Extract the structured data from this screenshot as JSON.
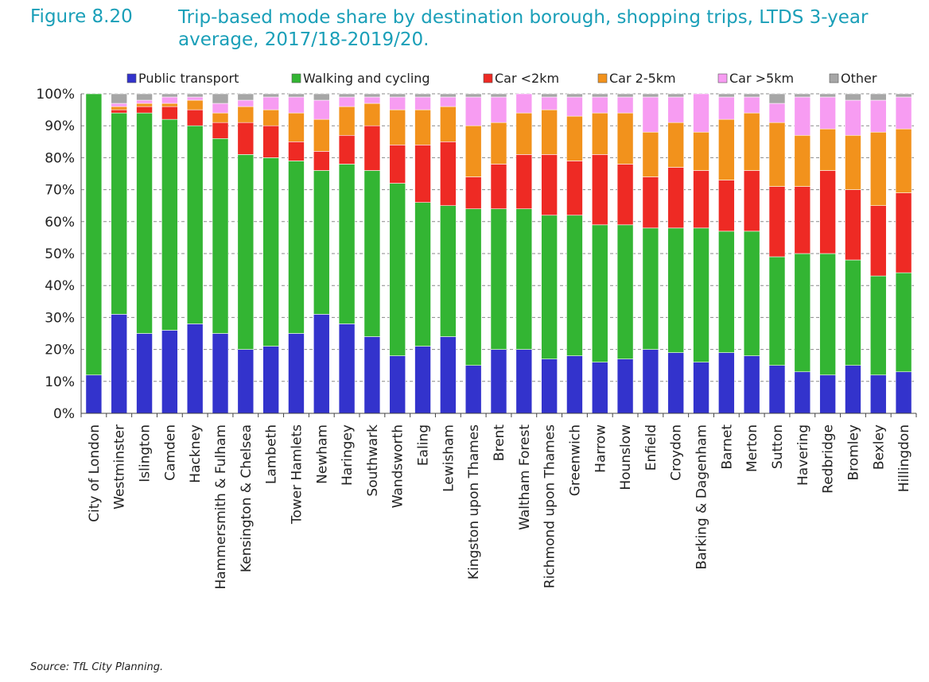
{
  "figure": {
    "number": "Figure 8.20",
    "title": "Trip-based mode share by destination borough, shopping trips, LTDS 3-year average, 2017/18-2019/20.",
    "source": "Source: TfL City Planning."
  },
  "chart_data": {
    "type": "bar",
    "stacked": true,
    "title": "",
    "xlabel": "",
    "ylabel": "",
    "ylim": [
      0,
      100
    ],
    "y_ticks": [
      "0%",
      "10%",
      "20%",
      "30%",
      "40%",
      "50%",
      "60%",
      "70%",
      "80%",
      "90%",
      "100%"
    ],
    "grid": "horizontal dashed",
    "legend_position": "top",
    "categories": [
      "City of London",
      "Westminster",
      "Islington",
      "Camden",
      "Hackney",
      "Hammersmith & Fulham",
      "Kensington & Chelsea",
      "Lambeth",
      "Tower Hamlets",
      "Newham",
      "Haringey",
      "Southwark",
      "Wandsworth",
      "Ealing",
      "Lewisham",
      "Kingston upon Thames",
      "Brent",
      "Waltham Forest",
      "Richmond upon Thames",
      "Greenwich",
      "Harrow",
      "Hounslow",
      "Enfield",
      "Croydon",
      "Barking & Dagenham",
      "Barnet",
      "Merton",
      "Sutton",
      "Havering",
      "Redbridge",
      "Bromley",
      "Bexley",
      "Hillingdon"
    ],
    "series": [
      {
        "name": "Public transport",
        "color": "#3333cc",
        "values": [
          12,
          31,
          25,
          26,
          28,
          25,
          20,
          21,
          25,
          31,
          28,
          24,
          18,
          21,
          24,
          15,
          20,
          20,
          17,
          18,
          16,
          17,
          20,
          19,
          16,
          19,
          18,
          15,
          13,
          12,
          15,
          12,
          13
        ]
      },
      {
        "name": "Walking and cycling",
        "color": "#33b533",
        "values": [
          88,
          63,
          69,
          66,
          62,
          61,
          61,
          59,
          54,
          45,
          50,
          52,
          54,
          45,
          41,
          49,
          44,
          44,
          45,
          44,
          43,
          42,
          38,
          39,
          42,
          38,
          39,
          34,
          37,
          38,
          33,
          31,
          31
        ]
      },
      {
        "name": "Car <2km",
        "color": "#ee2a24",
        "values": [
          0,
          1,
          2,
          4,
          5,
          5,
          10,
          10,
          6,
          6,
          9,
          14,
          12,
          18,
          20,
          10,
          14,
          17,
          19,
          17,
          22,
          19,
          16,
          19,
          18,
          16,
          19,
          22,
          21,
          26,
          22,
          22,
          25
        ]
      },
      {
        "name": "Car 2-5km",
        "color": "#f2921c",
        "values": [
          0,
          1,
          1,
          1,
          3,
          3,
          5,
          5,
          9,
          10,
          9,
          7,
          11,
          11,
          11,
          16,
          13,
          13,
          14,
          14,
          13,
          16,
          14,
          14,
          12,
          19,
          18,
          20,
          16,
          13,
          17,
          23,
          20
        ]
      },
      {
        "name": "Car >5km",
        "color": "#f79cf2",
        "values": [
          0,
          1,
          1,
          2,
          1,
          3,
          2,
          4,
          5,
          6,
          3,
          2,
          4,
          4,
          3,
          9,
          8,
          6,
          4,
          6,
          5,
          5,
          11,
          8,
          12,
          7,
          5,
          6,
          12,
          10,
          11,
          10,
          10
        ]
      },
      {
        "name": "Other",
        "color": "#a6a6a6",
        "values": [
          0,
          3,
          2,
          1,
          1,
          3,
          2,
          1,
          1,
          2,
          1,
          1,
          1,
          1,
          1,
          1,
          1,
          0,
          1,
          1,
          1,
          1,
          1,
          1,
          0,
          1,
          1,
          3,
          1,
          1,
          2,
          2,
          1
        ]
      }
    ]
  }
}
